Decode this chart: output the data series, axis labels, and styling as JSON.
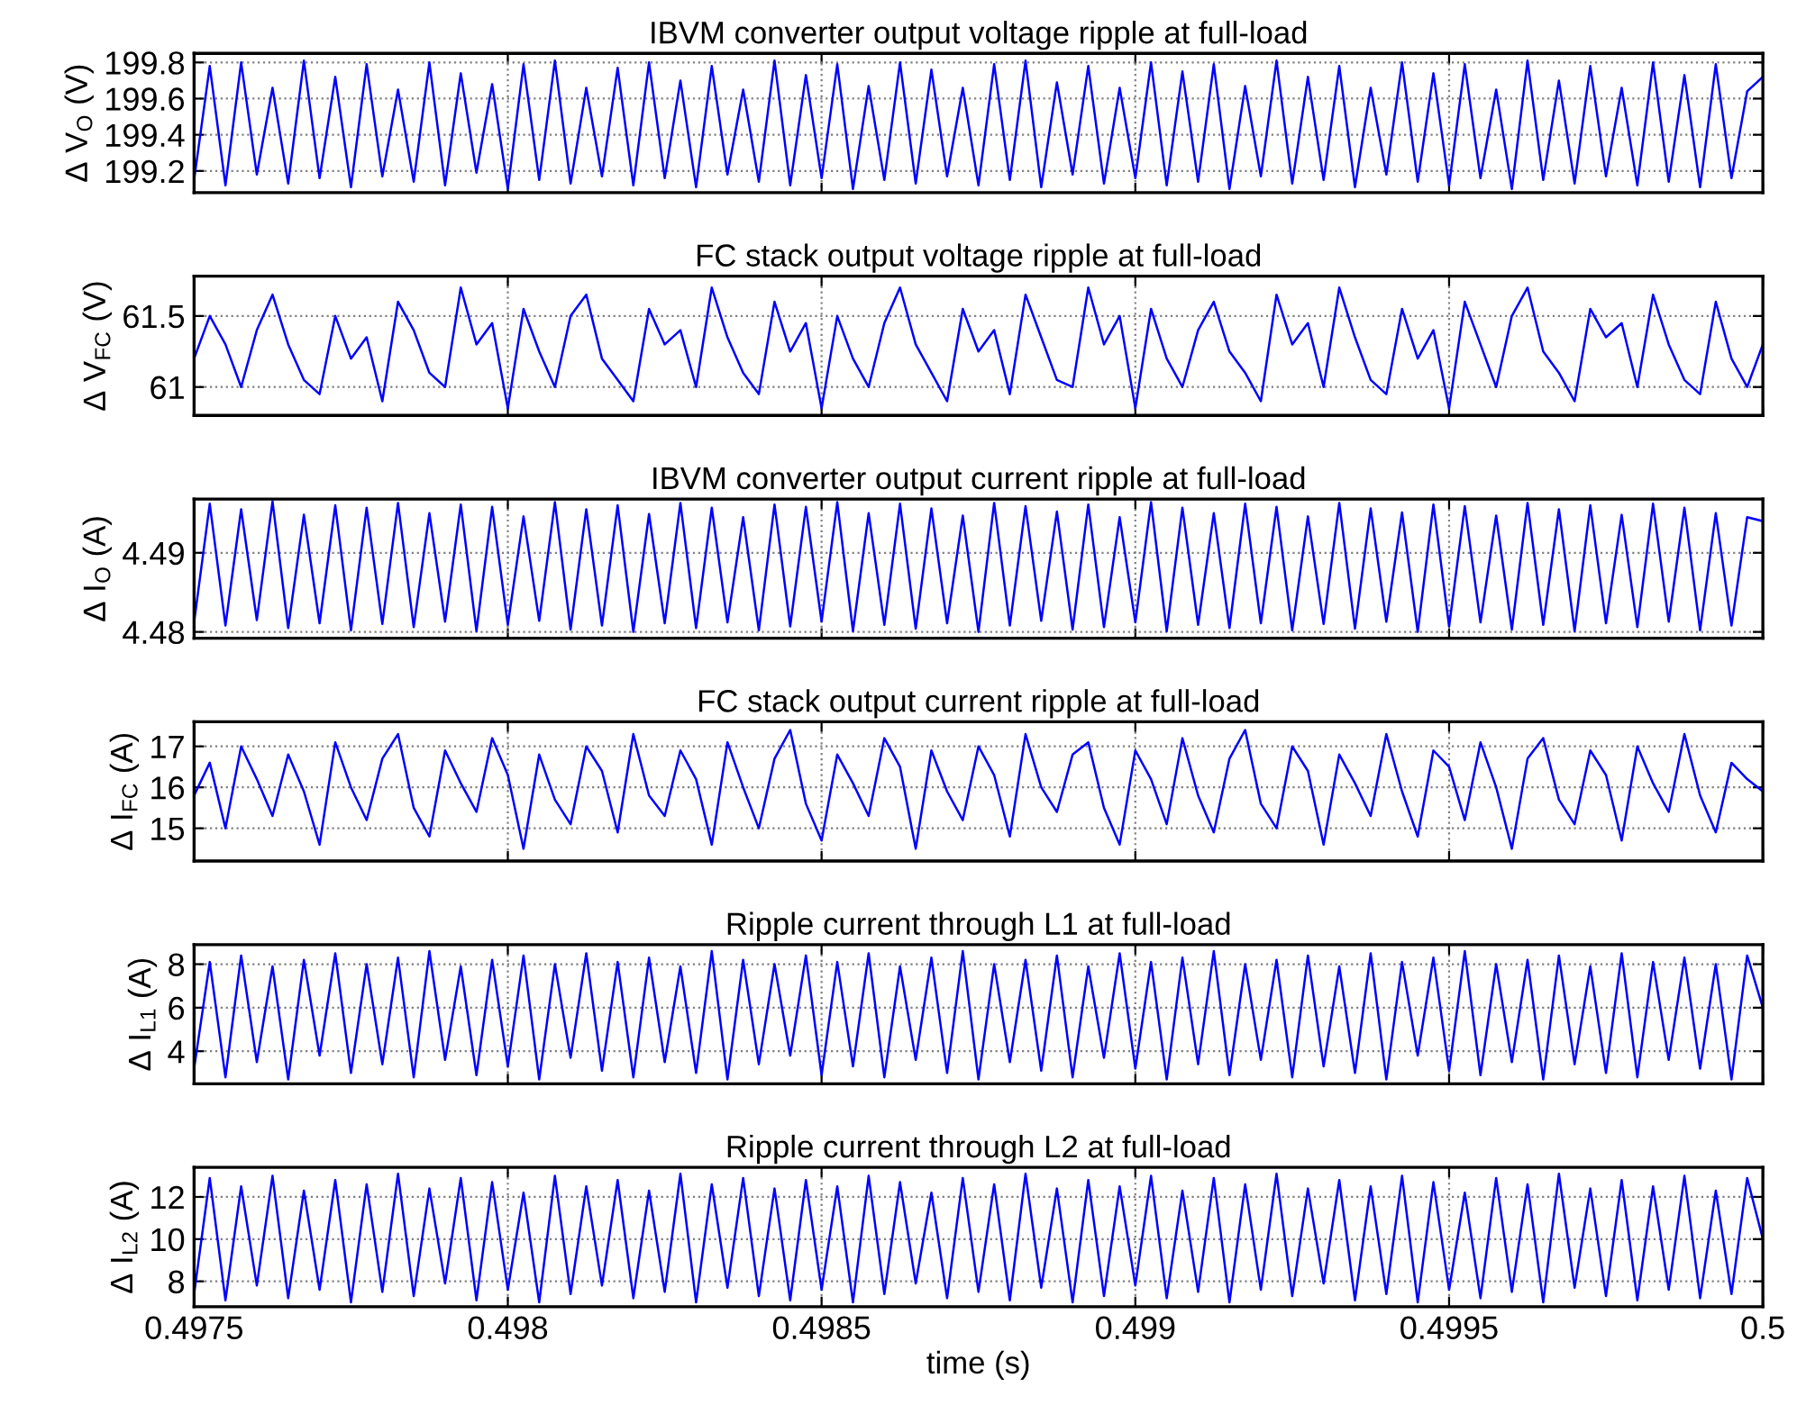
{
  "chart_data": [
    {
      "type": "line",
      "title": "IBVM converter output voltage ripple at full-load",
      "ylabel": "Δ V$_{O}$ (V)",
      "ylim": [
        199.08,
        199.85
      ],
      "yticks": [
        199.2,
        199.4,
        199.6,
        199.8
      ],
      "xlim": [
        0.4975,
        0.5
      ],
      "xticks": [
        {
          "value": 0.4975,
          "label": null
        },
        {
          "value": 0.498,
          "label": null
        },
        {
          "value": 0.4985,
          "label": null
        },
        {
          "value": 0.499,
          "label": null
        },
        {
          "value": 0.4995,
          "label": null
        },
        {
          "value": 0.5,
          "label": null
        }
      ],
      "tick_labels": "y",
      "grid": true,
      "x": [
        0.4975,
        0.497525,
        0.49755,
        0.497575,
        0.4976,
        0.497625,
        0.49765,
        0.497675,
        0.4977,
        0.497725,
        0.49775,
        0.497775,
        0.4978,
        0.497825,
        0.49785,
        0.497875,
        0.4979,
        0.497925,
        0.49795,
        0.497975,
        0.498,
        0.498025,
        0.49805,
        0.498075,
        0.4981,
        0.498125,
        0.49815,
        0.498175,
        0.4982,
        0.498225,
        0.49825,
        0.498275,
        0.4983,
        0.498325,
        0.49835,
        0.498375,
        0.4984,
        0.498425,
        0.49845,
        0.498475,
        0.4985,
        0.498525,
        0.49855,
        0.498575,
        0.4986,
        0.498625,
        0.49865,
        0.498675,
        0.4987,
        0.498725,
        0.49875,
        0.498775,
        0.4988,
        0.498825,
        0.49885,
        0.498875,
        0.4989,
        0.498925,
        0.49895,
        0.498975,
        0.499,
        0.499025,
        0.49905,
        0.499075,
        0.4991,
        0.499125,
        0.49915,
        0.499175,
        0.4992,
        0.499225,
        0.49925,
        0.499275,
        0.4993,
        0.499325,
        0.49935,
        0.499375,
        0.4994,
        0.499425,
        0.49945,
        0.499475,
        0.4995,
        0.499525,
        0.49955,
        0.499575,
        0.4996,
        0.499625,
        0.49965,
        0.499675,
        0.4997,
        0.499725,
        0.49975,
        0.499775,
        0.4998,
        0.499825,
        0.49985,
        0.499875,
        0.4999,
        0.499925,
        0.49995,
        0.499975,
        0.5
      ],
      "series": [
        {
          "color": "#0000ff",
          "values": [
            199.15,
            199.78,
            199.12,
            199.8,
            199.18,
            199.66,
            199.13,
            199.81,
            199.16,
            199.72,
            199.11,
            199.79,
            199.17,
            199.65,
            199.14,
            199.8,
            199.12,
            199.74,
            199.19,
            199.68,
            199.1,
            199.79,
            199.15,
            199.81,
            199.13,
            199.66,
            199.17,
            199.77,
            199.12,
            199.8,
            199.16,
            199.7,
            199.11,
            199.78,
            199.18,
            199.65,
            199.14,
            199.81,
            199.12,
            199.73,
            199.16,
            199.79,
            199.1,
            199.67,
            199.15,
            199.8,
            199.13,
            199.76,
            199.17,
            199.66,
            199.12,
            199.79,
            199.15,
            199.81,
            199.11,
            199.69,
            199.18,
            199.78,
            199.13,
            199.66,
            199.16,
            199.8,
            199.12,
            199.75,
            199.14,
            199.79,
            199.1,
            199.67,
            199.17,
            199.81,
            199.13,
            199.72,
            199.15,
            199.78,
            199.11,
            199.66,
            199.18,
            199.8,
            199.14,
            199.74,
            199.12,
            199.79,
            199.16,
            199.65,
            199.1,
            199.81,
            199.15,
            199.7,
            199.13,
            199.78,
            199.17,
            199.66,
            199.12,
            199.8,
            199.14,
            199.73,
            199.11,
            199.79,
            199.16,
            199.64,
            199.72
          ]
        }
      ]
    },
    {
      "type": "line",
      "title": "FC stack output voltage ripple at full-load",
      "ylabel": "Δ V$_{FC}$ (V)",
      "ylim": [
        60.8,
        61.78
      ],
      "yticks": [
        61,
        61.5
      ],
      "xlim": [
        0.4975,
        0.5
      ],
      "xticks": [
        {
          "value": 0.4975,
          "label": null
        },
        {
          "value": 0.498,
          "label": null
        },
        {
          "value": 0.4985,
          "label": null
        },
        {
          "value": 0.499,
          "label": null
        },
        {
          "value": 0.4995,
          "label": null
        },
        {
          "value": 0.5,
          "label": null
        }
      ],
      "tick_labels": "y",
      "grid": true,
      "x": [
        0.4975,
        0.497525,
        0.49755,
        0.497575,
        0.4976,
        0.497625,
        0.49765,
        0.497675,
        0.4977,
        0.497725,
        0.49775,
        0.497775,
        0.4978,
        0.497825,
        0.49785,
        0.497875,
        0.4979,
        0.497925,
        0.49795,
        0.497975,
        0.498,
        0.498025,
        0.49805,
        0.498075,
        0.4981,
        0.498125,
        0.49815,
        0.498175,
        0.4982,
        0.498225,
        0.49825,
        0.498275,
        0.4983,
        0.498325,
        0.49835,
        0.498375,
        0.4984,
        0.498425,
        0.49845,
        0.498475,
        0.4985,
        0.498525,
        0.49855,
        0.498575,
        0.4986,
        0.498625,
        0.49865,
        0.498675,
        0.4987,
        0.498725,
        0.49875,
        0.498775,
        0.4988,
        0.498825,
        0.49885,
        0.498875,
        0.4989,
        0.498925,
        0.49895,
        0.498975,
        0.499,
        0.499025,
        0.49905,
        0.499075,
        0.4991,
        0.499125,
        0.49915,
        0.499175,
        0.4992,
        0.499225,
        0.49925,
        0.499275,
        0.4993,
        0.499325,
        0.49935,
        0.499375,
        0.4994,
        0.499425,
        0.49945,
        0.499475,
        0.4995,
        0.499525,
        0.49955,
        0.499575,
        0.4996,
        0.499625,
        0.49965,
        0.499675,
        0.4997,
        0.499725,
        0.49975,
        0.499775,
        0.4998,
        0.499825,
        0.49985,
        0.499875,
        0.4999,
        0.499925,
        0.49995,
        0.499975,
        0.5
      ],
      "series": [
        {
          "color": "#0000ff",
          "values": [
            61.2,
            61.5,
            61.3,
            61.0,
            61.4,
            61.65,
            61.3,
            61.05,
            60.95,
            61.5,
            61.2,
            61.35,
            60.9,
            61.6,
            61.4,
            61.1,
            61.0,
            61.7,
            61.3,
            61.45,
            60.85,
            61.55,
            61.25,
            61.0,
            61.5,
            61.65,
            61.2,
            61.05,
            60.9,
            61.55,
            61.3,
            61.4,
            61.0,
            61.7,
            61.35,
            61.1,
            60.95,
            61.6,
            61.25,
            61.45,
            60.85,
            61.5,
            61.2,
            61.0,
            61.45,
            61.7,
            61.3,
            61.1,
            60.9,
            61.55,
            61.25,
            61.4,
            60.95,
            61.65,
            61.35,
            61.05,
            61.0,
            61.7,
            61.3,
            61.5,
            60.85,
            61.55,
            61.2,
            61.0,
            61.4,
            61.6,
            61.25,
            61.1,
            60.9,
            61.65,
            61.3,
            61.45,
            61.0,
            61.7,
            61.35,
            61.05,
            60.95,
            61.55,
            61.2,
            61.4,
            60.85,
            61.6,
            61.3,
            61.0,
            61.5,
            61.7,
            61.25,
            61.1,
            60.9,
            61.55,
            61.35,
            61.45,
            61.0,
            61.65,
            61.3,
            61.05,
            60.95,
            61.6,
            61.2,
            61.0,
            61.3
          ]
        }
      ]
    },
    {
      "type": "line",
      "title": "IBVM converter output current ripple at full-load",
      "ylabel": "Δ I$_{O}$ (A)",
      "ylim": [
        4.4792,
        4.4968
      ],
      "yticks": [
        4.48,
        4.49
      ],
      "xlim": [
        0.4975,
        0.5
      ],
      "xticks": [
        {
          "value": 0.4975,
          "label": null
        },
        {
          "value": 0.498,
          "label": null
        },
        {
          "value": 0.4985,
          "label": null
        },
        {
          "value": 0.499,
          "label": null
        },
        {
          "value": 0.4995,
          "label": null
        },
        {
          "value": 0.5,
          "label": null
        }
      ],
      "tick_labels": "y",
      "grid": true,
      "x": [
        0.4975,
        0.497525,
        0.49755,
        0.497575,
        0.4976,
        0.497625,
        0.49765,
        0.497675,
        0.4977,
        0.497725,
        0.49775,
        0.497775,
        0.4978,
        0.497825,
        0.49785,
        0.497875,
        0.4979,
        0.497925,
        0.49795,
        0.497975,
        0.498,
        0.498025,
        0.49805,
        0.498075,
        0.4981,
        0.498125,
        0.49815,
        0.498175,
        0.4982,
        0.498225,
        0.49825,
        0.498275,
        0.4983,
        0.498325,
        0.49835,
        0.498375,
        0.4984,
        0.498425,
        0.49845,
        0.498475,
        0.4985,
        0.498525,
        0.49855,
        0.498575,
        0.4986,
        0.498625,
        0.49865,
        0.498675,
        0.4987,
        0.498725,
        0.49875,
        0.498775,
        0.4988,
        0.498825,
        0.49885,
        0.498875,
        0.4989,
        0.498925,
        0.49895,
        0.498975,
        0.499,
        0.499025,
        0.49905,
        0.499075,
        0.4991,
        0.499125,
        0.49915,
        0.499175,
        0.4992,
        0.499225,
        0.49925,
        0.499275,
        0.4993,
        0.499325,
        0.49935,
        0.499375,
        0.4994,
        0.499425,
        0.49945,
        0.499475,
        0.4995,
        0.499525,
        0.49955,
        0.499575,
        0.4996,
        0.499625,
        0.49965,
        0.499675,
        0.4997,
        0.499725,
        0.49975,
        0.499775,
        0.4998,
        0.499825,
        0.49985,
        0.499875,
        0.4999,
        0.499925,
        0.49995,
        0.499975,
        0.5
      ],
      "series": [
        {
          "color": "#0000ff",
          "values": [
            4.4812,
            4.4962,
            4.4808,
            4.4955,
            4.4815,
            4.4965,
            4.4805,
            4.4948,
            4.4811,
            4.496,
            4.4802,
            4.4957,
            4.481,
            4.4963,
            4.4806,
            4.495,
            4.4813,
            4.4961,
            4.4801,
            4.4958,
            4.4809,
            4.4946,
            4.4814,
            4.4964,
            4.4803,
            4.4955,
            4.4808,
            4.496,
            4.48,
            4.4949,
            4.4811,
            4.4963,
            4.4805,
            4.4957,
            4.4812,
            4.4945,
            4.4802,
            4.4961,
            4.4807,
            4.4958,
            4.4813,
            4.4964,
            4.4801,
            4.495,
            4.4809,
            4.4962,
            4.4804,
            4.4956,
            4.4811,
            4.4947,
            4.48,
            4.4963,
            4.4808,
            4.4959,
            4.4814,
            4.4952,
            4.4803,
            4.4961,
            4.4806,
            4.4945,
            4.4812,
            4.4964,
            4.4801,
            4.4957,
            4.4809,
            4.495,
            4.4805,
            4.4962,
            4.4811,
            4.4958,
            4.4802,
            4.4946,
            4.481,
            4.4963,
            4.4804,
            4.4956,
            4.4813,
            4.4951,
            4.48,
            4.4961,
            4.4807,
            4.4959,
            4.4812,
            4.4947,
            4.4803,
            4.4963,
            4.4809,
            4.4955,
            4.4801,
            4.496,
            4.4811,
            4.4948,
            4.4806,
            4.4962,
            4.4813,
            4.4957,
            4.4802,
            4.495,
            4.4808,
            4.4945,
            4.494
          ]
        }
      ]
    },
    {
      "type": "line",
      "title": "FC stack output current ripple at full-load",
      "ylabel": "Δ I$_{FC}$ (A)",
      "ylim": [
        14.2,
        17.6
      ],
      "yticks": [
        15,
        16,
        17
      ],
      "xlim": [
        0.4975,
        0.5
      ],
      "xticks": [
        {
          "value": 0.4975,
          "label": null
        },
        {
          "value": 0.498,
          "label": null
        },
        {
          "value": 0.4985,
          "label": null
        },
        {
          "value": 0.499,
          "label": null
        },
        {
          "value": 0.4995,
          "label": null
        },
        {
          "value": 0.5,
          "label": null
        }
      ],
      "tick_labels": "y",
      "grid": true,
      "x": [
        0.4975,
        0.497525,
        0.49755,
        0.497575,
        0.4976,
        0.497625,
        0.49765,
        0.497675,
        0.4977,
        0.497725,
        0.49775,
        0.497775,
        0.4978,
        0.497825,
        0.49785,
        0.497875,
        0.4979,
        0.497925,
        0.49795,
        0.497975,
        0.498,
        0.498025,
        0.49805,
        0.498075,
        0.4981,
        0.498125,
        0.49815,
        0.498175,
        0.4982,
        0.498225,
        0.49825,
        0.498275,
        0.4983,
        0.498325,
        0.49835,
        0.498375,
        0.4984,
        0.498425,
        0.49845,
        0.498475,
        0.4985,
        0.498525,
        0.49855,
        0.498575,
        0.4986,
        0.498625,
        0.49865,
        0.498675,
        0.4987,
        0.498725,
        0.49875,
        0.498775,
        0.4988,
        0.498825,
        0.49885,
        0.498875,
        0.4989,
        0.498925,
        0.49895,
        0.498975,
        0.499,
        0.499025,
        0.49905,
        0.499075,
        0.4991,
        0.499125,
        0.49915,
        0.499175,
        0.4992,
        0.499225,
        0.49925,
        0.499275,
        0.4993,
        0.499325,
        0.49935,
        0.499375,
        0.4994,
        0.499425,
        0.49945,
        0.499475,
        0.4995,
        0.499525,
        0.49955,
        0.499575,
        0.4996,
        0.499625,
        0.49965,
        0.499675,
        0.4997,
        0.499725,
        0.49975,
        0.499775,
        0.4998,
        0.499825,
        0.49985,
        0.499875,
        0.4999,
        0.499925,
        0.49995,
        0.499975,
        0.5
      ],
      "series": [
        {
          "color": "#0000ff",
          "values": [
            15.8,
            16.6,
            15.0,
            17.0,
            16.2,
            15.3,
            16.8,
            15.9,
            14.6,
            17.1,
            16.0,
            15.2,
            16.7,
            17.3,
            15.5,
            14.8,
            16.9,
            16.1,
            15.4,
            17.2,
            16.3,
            14.5,
            16.8,
            15.7,
            15.1,
            17.0,
            16.4,
            14.9,
            17.3,
            15.8,
            15.3,
            16.9,
            16.2,
            14.6,
            17.1,
            16.0,
            15.0,
            16.7,
            17.4,
            15.6,
            14.7,
            16.8,
            16.1,
            15.3,
            17.2,
            16.5,
            14.5,
            16.9,
            15.9,
            15.2,
            17.0,
            16.3,
            14.8,
            17.3,
            16.0,
            15.4,
            16.8,
            17.1,
            15.5,
            14.6,
            16.9,
            16.2,
            15.1,
            17.2,
            15.8,
            14.9,
            16.7,
            17.4,
            15.6,
            15.0,
            17.0,
            16.4,
            14.6,
            16.8,
            16.1,
            15.3,
            17.3,
            15.9,
            14.8,
            16.9,
            16.5,
            15.2,
            17.1,
            16.0,
            14.5,
            16.7,
            17.2,
            15.7,
            15.1,
            16.9,
            16.3,
            14.7,
            17.0,
            16.1,
            15.4,
            17.3,
            15.8,
            14.9,
            16.6,
            16.2,
            15.9
          ]
        }
      ]
    },
    {
      "type": "line",
      "title": "Ripple current through L1 at full-load",
      "ylabel": "Δ I$_{L1}$ (A)",
      "ylim": [
        2.5,
        8.9
      ],
      "yticks": [
        4,
        6,
        8
      ],
      "xlim": [
        0.4975,
        0.5
      ],
      "xticks": [
        {
          "value": 0.4975,
          "label": null
        },
        {
          "value": 0.498,
          "label": null
        },
        {
          "value": 0.4985,
          "label": null
        },
        {
          "value": 0.499,
          "label": null
        },
        {
          "value": 0.4995,
          "label": null
        },
        {
          "value": 0.5,
          "label": null
        }
      ],
      "tick_labels": "y",
      "grid": true,
      "x": [
        0.4975,
        0.497525,
        0.49755,
        0.497575,
        0.4976,
        0.497625,
        0.49765,
        0.497675,
        0.4977,
        0.497725,
        0.49775,
        0.497775,
        0.4978,
        0.497825,
        0.49785,
        0.497875,
        0.4979,
        0.497925,
        0.49795,
        0.497975,
        0.498,
        0.498025,
        0.49805,
        0.498075,
        0.4981,
        0.498125,
        0.49815,
        0.498175,
        0.4982,
        0.498225,
        0.49825,
        0.498275,
        0.4983,
        0.498325,
        0.49835,
        0.498375,
        0.4984,
        0.498425,
        0.49845,
        0.498475,
        0.4985,
        0.498525,
        0.49855,
        0.498575,
        0.4986,
        0.498625,
        0.49865,
        0.498675,
        0.4987,
        0.498725,
        0.49875,
        0.498775,
        0.4988,
        0.498825,
        0.49885,
        0.498875,
        0.4989,
        0.498925,
        0.49895,
        0.498975,
        0.499,
        0.499025,
        0.49905,
        0.499075,
        0.4991,
        0.499125,
        0.49915,
        0.499175,
        0.4992,
        0.499225,
        0.49925,
        0.499275,
        0.4993,
        0.499325,
        0.49935,
        0.499375,
        0.4994,
        0.499425,
        0.49945,
        0.499475,
        0.4995,
        0.499525,
        0.49955,
        0.499575,
        0.4996,
        0.499625,
        0.49965,
        0.499675,
        0.4997,
        0.499725,
        0.49975,
        0.499775,
        0.4998,
        0.499825,
        0.49985,
        0.499875,
        0.4999,
        0.499925,
        0.49995,
        0.499975,
        0.5
      ],
      "series": [
        {
          "color": "#0000ff",
          "values": [
            3.2,
            8.1,
            2.8,
            8.4,
            3.5,
            7.9,
            2.7,
            8.2,
            3.8,
            8.5,
            3.0,
            8.0,
            3.4,
            8.3,
            2.8,
            8.6,
            3.6,
            7.9,
            2.9,
            8.2,
            3.3,
            8.4,
            2.7,
            8.0,
            3.7,
            8.5,
            3.1,
            8.1,
            2.8,
            8.3,
            3.5,
            7.9,
            3.0,
            8.6,
            2.7,
            8.2,
            3.4,
            8.0,
            3.8,
            8.4,
            2.9,
            8.1,
            3.3,
            8.5,
            2.8,
            7.9,
            3.6,
            8.3,
            3.0,
            8.6,
            2.7,
            8.0,
            3.5,
            8.2,
            3.1,
            8.4,
            2.8,
            7.9,
            3.7,
            8.5,
            3.2,
            8.1,
            2.7,
            8.3,
            3.4,
            8.6,
            2.9,
            8.0,
            3.6,
            8.2,
            2.8,
            8.4,
            3.3,
            7.9,
            3.0,
            8.5,
            2.7,
            8.1,
            3.8,
            8.3,
            3.1,
            8.6,
            2.9,
            8.0,
            3.5,
            8.2,
            2.7,
            8.4,
            3.4,
            7.9,
            3.0,
            8.5,
            2.8,
            8.1,
            3.6,
            8.3,
            3.2,
            8.0,
            2.7,
            8.4,
            6.0
          ]
        }
      ]
    },
    {
      "type": "line",
      "title": "Ripple current through L2 at full-load",
      "ylabel": "Δ I$_{L2}$ (A)",
      "xlabel": "time (s)",
      "ylim": [
        6.8,
        13.4
      ],
      "yticks": [
        8,
        10,
        12
      ],
      "xlim": [
        0.4975,
        0.5
      ],
      "xticks": [
        0.4975,
        0.498,
        0.4985,
        0.499,
        0.4995,
        0.5
      ],
      "grid": true,
      "x": [
        0.4975,
        0.497525,
        0.49755,
        0.497575,
        0.4976,
        0.497625,
        0.49765,
        0.497675,
        0.4977,
        0.497725,
        0.49775,
        0.497775,
        0.4978,
        0.497825,
        0.49785,
        0.497875,
        0.4979,
        0.497925,
        0.49795,
        0.497975,
        0.498,
        0.498025,
        0.49805,
        0.498075,
        0.4981,
        0.498125,
        0.49815,
        0.498175,
        0.4982,
        0.498225,
        0.49825,
        0.498275,
        0.4983,
        0.498325,
        0.49835,
        0.498375,
        0.4984,
        0.498425,
        0.49845,
        0.498475,
        0.4985,
        0.498525,
        0.49855,
        0.498575,
        0.4986,
        0.498625,
        0.49865,
        0.498675,
        0.4987,
        0.498725,
        0.49875,
        0.498775,
        0.4988,
        0.498825,
        0.49885,
        0.498875,
        0.4989,
        0.498925,
        0.49895,
        0.498975,
        0.499,
        0.499025,
        0.49905,
        0.499075,
        0.4991,
        0.499125,
        0.49915,
        0.499175,
        0.4992,
        0.499225,
        0.49925,
        0.499275,
        0.4993,
        0.499325,
        0.49935,
        0.499375,
        0.4994,
        0.499425,
        0.49945,
        0.499475,
        0.4995,
        0.499525,
        0.49955,
        0.499575,
        0.4996,
        0.499625,
        0.49965,
        0.499675,
        0.4997,
        0.499725,
        0.49975,
        0.499775,
        0.4998,
        0.499825,
        0.49985,
        0.499875,
        0.4999,
        0.499925,
        0.49995,
        0.499975,
        0.5
      ],
      "series": [
        {
          "color": "#0000ff",
          "values": [
            7.4,
            12.9,
            7.1,
            12.5,
            7.8,
            13.0,
            7.2,
            12.3,
            7.6,
            12.8,
            7.0,
            12.6,
            7.5,
            13.1,
            7.3,
            12.4,
            7.9,
            12.9,
            7.1,
            12.7,
            7.6,
            12.2,
            7.0,
            13.0,
            7.4,
            12.5,
            7.8,
            12.8,
            7.2,
            12.3,
            7.5,
            13.1,
            7.0,
            12.6,
            7.7,
            12.9,
            7.3,
            12.4,
            7.1,
            12.8,
            7.6,
            12.5,
            7.0,
            13.0,
            7.4,
            12.7,
            7.9,
            12.2,
            7.2,
            12.9,
            7.5,
            12.6,
            7.1,
            13.1,
            7.7,
            12.4,
            7.0,
            12.8,
            7.3,
            12.5,
            7.8,
            13.0,
            7.2,
            12.3,
            7.5,
            12.9,
            7.0,
            12.6,
            7.6,
            13.1,
            7.3,
            12.4,
            7.9,
            12.8,
            7.1,
            12.5,
            7.4,
            13.0,
            7.0,
            12.7,
            7.6,
            12.2,
            7.2,
            12.9,
            7.5,
            12.6,
            7.0,
            13.1,
            7.7,
            12.4,
            7.3,
            12.8,
            7.1,
            12.5,
            7.6,
            13.0,
            7.2,
            12.3,
            7.4,
            12.9,
            10.0
          ]
        }
      ]
    }
  ]
}
